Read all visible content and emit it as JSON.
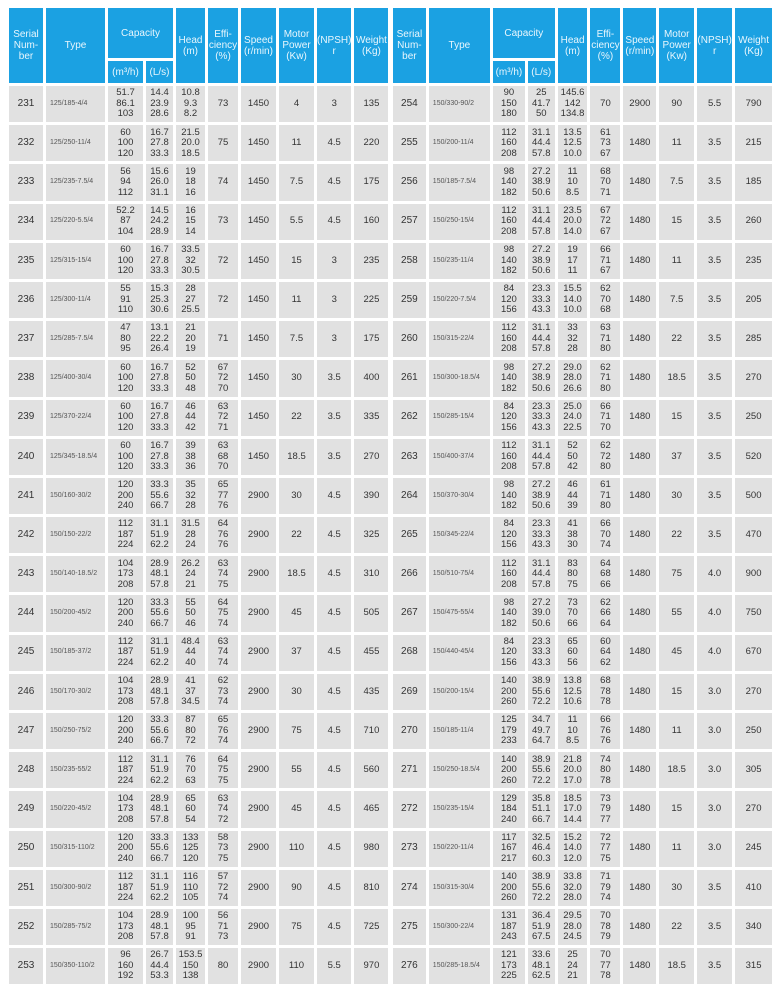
{
  "colors": {
    "header": "#1ba1e2",
    "cell": "#e1e1e1"
  },
  "header": {
    "serial": "Serial\nNum-\nber",
    "type": "Type",
    "capacity": "Capacity",
    "m3h": "(m³/h)",
    "ls": "(L/s)",
    "head": "Head\n(m)",
    "eff": "Effi-\nciency\n(%)",
    "speed": "Speed\n(r/min)",
    "power": "Motor\nPower\n(Kw)",
    "npsh": "(NPSH)\nr",
    "weight": "Weight\n(Kg)"
  },
  "left": [
    [
      "231",
      "125/185-4/4",
      "51.7\n86.1\n103",
      "14.4\n23.9\n28.6",
      "10.8\n9.3\n8.2",
      "73",
      "1450",
      "4",
      "3",
      "135"
    ],
    [
      "232",
      "125/250-11/4",
      "60\n100\n120",
      "16.7\n27.8\n33.3",
      "21.5\n20.0\n18.5",
      "75",
      "1450",
      "11",
      "4.5",
      "220"
    ],
    [
      "233",
      "125/235-7.5/4",
      "56\n94\n112",
      "15.6\n26.0\n31.1",
      "19\n18\n16",
      "74",
      "1450",
      "7.5",
      "4.5",
      "175"
    ],
    [
      "234",
      "125/220-5.5/4",
      "52.2\n87\n104",
      "14.5\n24.2\n28.9",
      "16\n15\n14",
      "73",
      "1450",
      "5.5",
      "4.5",
      "160"
    ],
    [
      "235",
      "125/315-15/4",
      "60\n100\n120",
      "16.7\n27.8\n33.3",
      "33.5\n32\n30.5",
      "72",
      "1450",
      "15",
      "3",
      "235"
    ],
    [
      "236",
      "125/300-11/4",
      "55\n91\n110",
      "15.3\n25.3\n30.6",
      "28\n27\n25.5",
      "72",
      "1450",
      "11",
      "3",
      "225"
    ],
    [
      "237",
      "125/285-7.5/4",
      "47\n80\n95",
      "13.1\n22.2\n26.4",
      "21\n20\n19",
      "71",
      "1450",
      "7.5",
      "3",
      "175"
    ],
    [
      "238",
      "125/400-30/4",
      "60\n100\n120",
      "16.7\n27.8\n33.3",
      "52\n50\n48",
      "67\n72\n70",
      "1450",
      "30",
      "3.5",
      "400"
    ],
    [
      "239",
      "125/370-22/4",
      "60\n100\n120",
      "16.7\n27.8\n33.3",
      "46\n44\n42",
      "63\n72\n71",
      "1450",
      "22",
      "3.5",
      "335"
    ],
    [
      "240",
      "125/345-18.5/4",
      "60\n100\n120",
      "16.7\n27.8\n33.3",
      "39\n38\n36",
      "63\n68\n70",
      "1450",
      "18.5",
      "3.5",
      "270"
    ],
    [
      "241",
      "150/160-30/2",
      "120\n200\n240",
      "33.3\n55.6\n66.7",
      "35\n32\n28",
      "65\n77\n76",
      "2900",
      "30",
      "4.5",
      "390"
    ],
    [
      "242",
      "150/150-22/2",
      "112\n187\n224",
      "31.1\n51.9\n62.2",
      "31.5\n28\n24",
      "64\n76\n76",
      "2900",
      "22",
      "4.5",
      "325"
    ],
    [
      "243",
      "150/140-18.5/2",
      "104\n173\n208",
      "28.9\n48.1\n57.8",
      "26.2\n24\n21",
      "63\n74\n75",
      "2900",
      "18.5",
      "4.5",
      "310"
    ],
    [
      "244",
      "150/200-45/2",
      "120\n200\n240",
      "33.3\n55.6\n66.7",
      "55\n50\n46",
      "64\n75\n74",
      "2900",
      "45",
      "4.5",
      "505"
    ],
    [
      "245",
      "150/185-37/2",
      "112\n187\n224",
      "31.1\n51.9\n62.2",
      "48.4\n44\n40",
      "63\n74\n74",
      "2900",
      "37",
      "4.5",
      "455"
    ],
    [
      "246",
      "150/170-30/2",
      "104\n173\n208",
      "28.9\n48.1\n57.8",
      "41\n37\n34.5",
      "62\n73\n74",
      "2900",
      "30",
      "4.5",
      "435"
    ],
    [
      "247",
      "150/250-75/2",
      "120\n200\n240",
      "33.3\n55.6\n66.7",
      "87\n80\n72",
      "65\n76\n74",
      "2900",
      "75",
      "4.5",
      "710"
    ],
    [
      "248",
      "150/235-55/2",
      "112\n187\n224",
      "31.1\n51.9\n62.2",
      "76\n70\n63",
      "64\n75\n75",
      "2900",
      "55",
      "4.5",
      "560"
    ],
    [
      "249",
      "150/220-45/2",
      "104\n173\n208",
      "28.9\n48.1\n57.8",
      "65\n60\n54",
      "63\n74\n72",
      "2900",
      "45",
      "4.5",
      "465"
    ],
    [
      "250",
      "150/315-110/2",
      "120\n200\n240",
      "33.3\n55.6\n66.7",
      "133\n125\n120",
      "58\n73\n75",
      "2900",
      "110",
      "4.5",
      "980"
    ],
    [
      "251",
      "150/300-90/2",
      "112\n187\n224",
      "31.1\n51.9\n62.2",
      "116\n110\n105",
      "57\n72\n74",
      "2900",
      "90",
      "4.5",
      "810"
    ],
    [
      "252",
      "150/285-75/2",
      "104\n173\n208",
      "28.9\n48.1\n57.8",
      "100\n95\n91",
      "56\n71\n73",
      "2900",
      "75",
      "4.5",
      "725"
    ],
    [
      "253",
      "150/350-110/2",
      "96\n160\n192",
      "26.7\n44.4\n53.3",
      "153.5\n150\n138",
      "80",
      "2900",
      "110",
      "5.5",
      "970"
    ]
  ],
  "right": [
    [
      "254",
      "150/330-90/2",
      "90\n150\n180",
      "25\n41.7\n50",
      "145.6\n142\n134.8",
      "70",
      "2900",
      "90",
      "5.5",
      "790"
    ],
    [
      "255",
      "150/200-11/4",
      "112\n160\n208",
      "31.1\n44.4\n57.8",
      "13.5\n12.5\n10.0",
      "61\n73\n67",
      "1480",
      "11",
      "3.5",
      "215"
    ],
    [
      "256",
      "150/185-7.5/4",
      "98\n140\n182",
      "27.2\n38.9\n50.6",
      "11\n10\n8.5",
      "68\n70\n71",
      "1480",
      "7.5",
      "3.5",
      "185"
    ],
    [
      "257",
      "150/250-15/4",
      "112\n160\n208",
      "31.1\n44.4\n57.8",
      "23.5\n20.0\n14.0",
      "67\n72\n67",
      "1480",
      "15",
      "3.5",
      "260"
    ],
    [
      "258",
      "150/235-11/4",
      "98\n140\n182",
      "27.2\n38.9\n50.6",
      "19\n17\n11",
      "66\n71\n67",
      "1480",
      "11",
      "3.5",
      "235"
    ],
    [
      "259",
      "150/220-7.5/4",
      "84\n120\n156",
      "23.3\n33.3\n43.3",
      "15.5\n14.0\n10.0",
      "62\n70\n68",
      "1480",
      "7.5",
      "3.5",
      "205"
    ],
    [
      "260",
      "150/315-22/4",
      "112\n160\n208",
      "31.1\n44.4\n57.8",
      "33\n32\n28",
      "63\n71\n80",
      "1480",
      "22",
      "3.5",
      "285"
    ],
    [
      "261",
      "150/300-18.5/4",
      "98\n140\n182",
      "27.2\n38.9\n50.6",
      "29.0\n28.0\n26.6",
      "62\n71\n80",
      "1480",
      "18.5",
      "3.5",
      "270"
    ],
    [
      "262",
      "150/285-15/4",
      "84\n120\n156",
      "23.3\n33.3\n43.3",
      "25.0\n24.0\n22.5",
      "66\n71\n70",
      "1480",
      "15",
      "3.5",
      "250"
    ],
    [
      "263",
      "150/400-37/4",
      "112\n160\n208",
      "31.1\n44.4\n57.8",
      "52\n50\n42",
      "62\n72\n80",
      "1480",
      "37",
      "3.5",
      "520"
    ],
    [
      "264",
      "150/370-30/4",
      "98\n140\n182",
      "27.2\n38.9\n50.6",
      "46\n44\n39",
      "61\n71\n80",
      "1480",
      "30",
      "3.5",
      "500"
    ],
    [
      "265",
      "150/345-22/4",
      "84\n120\n156",
      "23.3\n33.3\n43.3",
      "41\n38\n30",
      "66\n70\n74",
      "1480",
      "22",
      "3.5",
      "470"
    ],
    [
      "266",
      "150/510-75/4",
      "112\n160\n208",
      "31.1\n44.4\n57.8",
      "83\n80\n75",
      "64\n68\n66",
      "1480",
      "75",
      "4.0",
      "900"
    ],
    [
      "267",
      "150/475-55/4",
      "98\n140\n182",
      "27.2\n39.0\n50.6",
      "73\n70\n66",
      "62\n66\n64",
      "1480",
      "55",
      "4.0",
      "750"
    ],
    [
      "268",
      "150/440-45/4",
      "84\n120\n156",
      "23.3\n33.3\n43.3",
      "65\n60\n56",
      "60\n64\n62",
      "1480",
      "45",
      "4.0",
      "670"
    ],
    [
      "269",
      "150/200-15/4",
      "140\n200\n260",
      "38.9\n55.6\n72.2",
      "13.8\n12.5\n10.6",
      "68\n78\n78",
      "1480",
      "15",
      "3.0",
      "270"
    ],
    [
      "270",
      "150/185-11/4",
      "125\n179\n233",
      "34.7\n49.7\n64.7",
      "11\n10\n8.5",
      "66\n76\n76",
      "1480",
      "11",
      "3.0",
      "250"
    ],
    [
      "271",
      "150/250-18.5/4",
      "140\n200\n260",
      "38.9\n55.6\n72.2",
      "21.8\n20.0\n17.0",
      "74\n80\n78",
      "1480",
      "18.5",
      "3.0",
      "305"
    ],
    [
      "272",
      "150/235-15/4",
      "129\n184\n240",
      "35.8\n51.1\n66.7",
      "18.5\n17.0\n14.4",
      "73\n79\n77",
      "1480",
      "15",
      "3.0",
      "270"
    ],
    [
      "273",
      "150/220-11/4",
      "117\n167\n217",
      "32.5\n46.4\n60.3",
      "15.2\n14.0\n12.0",
      "72\n77\n75",
      "1480",
      "11",
      "3.0",
      "245"
    ],
    [
      "274",
      "150/315-30/4",
      "140\n200\n260",
      "38.9\n55.6\n72.2",
      "33.8\n32.0\n28.0",
      "71\n79\n74",
      "1480",
      "30",
      "3.5",
      "410"
    ],
    [
      "275",
      "150/300-22/4",
      "131\n187\n243",
      "36.4\n51.9\n67.5",
      "29.5\n28.0\n24.5",
      "70\n78\n79",
      "1480",
      "22",
      "3.5",
      "340"
    ],
    [
      "276",
      "150/285-18.5/4",
      "121\n173\n225",
      "33.6\n48.1\n62.5",
      "25\n24\n21",
      "70\n77\n78",
      "1480",
      "18.5",
      "3.5",
      "315"
    ]
  ]
}
